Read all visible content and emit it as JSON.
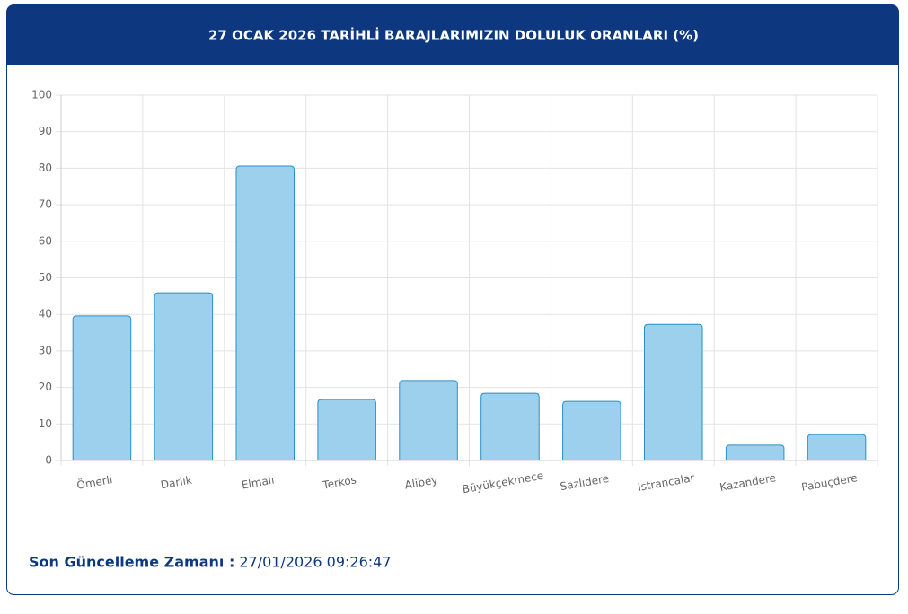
{
  "chart_data": {
    "type": "bar",
    "title": "27 OCAK 2026 TARİHLİ BARAJLARIMIZIN DOLULUK ORANLARI (%)",
    "categories": [
      "Ömerli",
      "Darlık",
      "Elmalı",
      "Terkos",
      "Alibey",
      "Büyükçekmece",
      "Sazlıdere",
      "Istrancalar",
      "Kazandere",
      "Pabuçdere"
    ],
    "values": [
      39.6,
      45.9,
      80.6,
      16.7,
      21.9,
      18.4,
      16.2,
      37.3,
      4.2,
      7.1
    ],
    "color": "#9dd0ec",
    "ylim": [
      0,
      100
    ],
    "yticks": [
      0,
      10,
      20,
      30,
      40,
      50,
      60,
      70,
      80,
      90,
      100
    ],
    "grid": true
  },
  "footer": {
    "label": "Son Güncelleme Zamanı :",
    "value": "27/01/2026 09:26:47"
  }
}
